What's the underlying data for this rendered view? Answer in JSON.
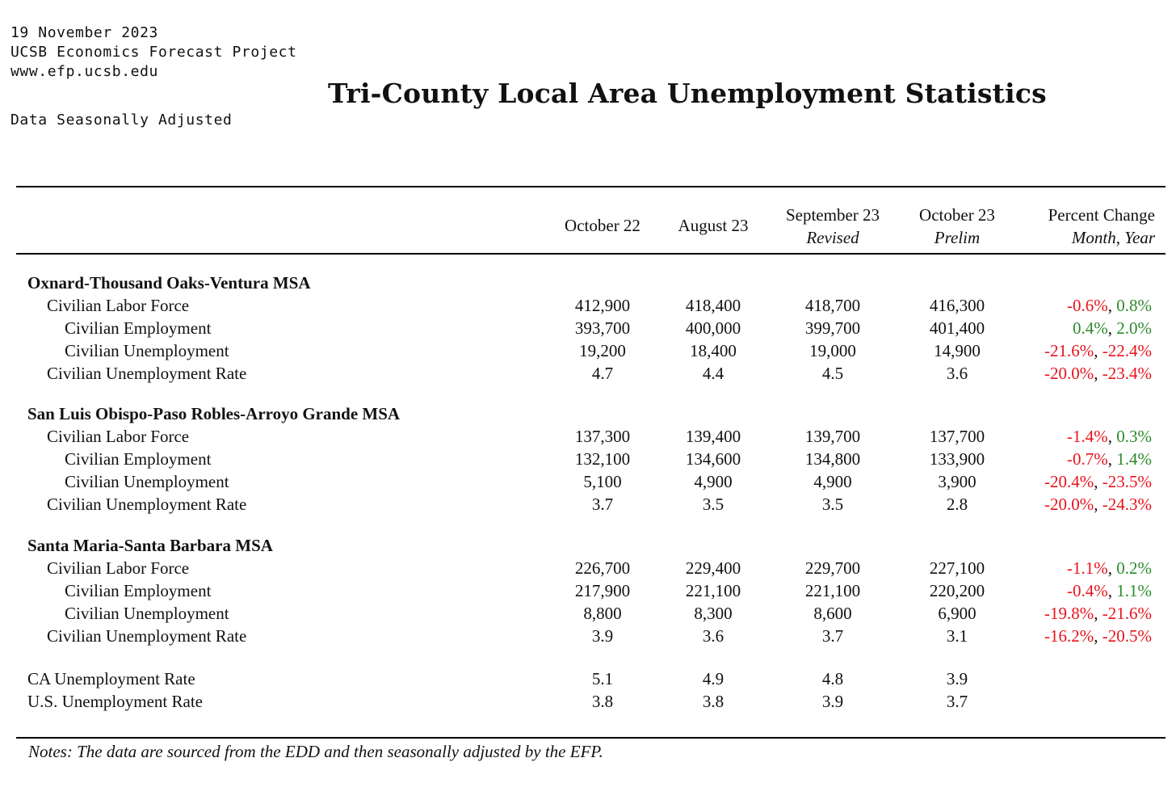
{
  "header": {
    "date": "19 November 2023",
    "org": "UCSB Economics Forecast Project",
    "url": "www.efp.ucsb.edu",
    "adjustment": "Data Seasonally Adjusted",
    "title": "Tri-County Local Area Unemployment Statistics"
  },
  "columns": [
    {
      "label": "October 22",
      "sub": ""
    },
    {
      "label": "August 23",
      "sub": ""
    },
    {
      "label": "September 23",
      "sub": "Revised"
    },
    {
      "label": "October 23",
      "sub": "Prelim"
    },
    {
      "label": "Percent Change",
      "sub": "Month, Year"
    }
  ],
  "groups": [
    {
      "name": "Oxnard-Thousand Oaks-Ventura MSA",
      "rows": [
        {
          "label": "Civilian Labor Force",
          "indent": 1,
          "values": [
            "412,900",
            "418,400",
            "418,700",
            "416,300"
          ],
          "month": "-0.6%",
          "year": "0.8%"
        },
        {
          "label": "Civilian Employment",
          "indent": 2,
          "values": [
            "393,700",
            "400,000",
            "399,700",
            "401,400"
          ],
          "month": "0.4%",
          "year": "2.0%"
        },
        {
          "label": "Civilian Unemployment",
          "indent": 2,
          "values": [
            "19,200",
            "18,400",
            "19,000",
            "14,900"
          ],
          "month": "-21.6%",
          "year": "-22.4%"
        },
        {
          "label": "Civilian Unemployment Rate",
          "indent": 1,
          "values": [
            "4.7",
            "4.4",
            "4.5",
            "3.6"
          ],
          "month": "-20.0%",
          "year": "-23.4%"
        }
      ]
    },
    {
      "name": "San Luis Obispo-Paso Robles-Arroyo Grande MSA",
      "rows": [
        {
          "label": "Civilian Labor Force",
          "indent": 1,
          "values": [
            "137,300",
            "139,400",
            "139,700",
            "137,700"
          ],
          "month": "-1.4%",
          "year": "0.3%"
        },
        {
          "label": "Civilian Employment",
          "indent": 2,
          "values": [
            "132,100",
            "134,600",
            "134,800",
            "133,900"
          ],
          "month": "-0.7%",
          "year": "1.4%"
        },
        {
          "label": "Civilian Unemployment",
          "indent": 2,
          "values": [
            "5,100",
            "4,900",
            "4,900",
            "3,900"
          ],
          "month": "-20.4%",
          "year": "-23.5%"
        },
        {
          "label": "Civilian Unemployment Rate",
          "indent": 1,
          "values": [
            "3.7",
            "3.5",
            "3.5",
            "2.8"
          ],
          "month": "-20.0%",
          "year": "-24.3%"
        }
      ]
    },
    {
      "name": "Santa Maria-Santa Barbara MSA",
      "rows": [
        {
          "label": "Civilian Labor Force",
          "indent": 1,
          "values": [
            "226,700",
            "229,400",
            "229,700",
            "227,100"
          ],
          "month": "-1.1%",
          "year": "0.2%"
        },
        {
          "label": "Civilian Employment",
          "indent": 2,
          "values": [
            "217,900",
            "221,100",
            "221,100",
            "220,200"
          ],
          "month": "-0.4%",
          "year": "1.1%"
        },
        {
          "label": "Civilian Unemployment",
          "indent": 2,
          "values": [
            "8,800",
            "8,300",
            "8,600",
            "6,900"
          ],
          "month": "-19.8%",
          "year": "-21.6%"
        },
        {
          "label": "Civilian Unemployment Rate",
          "indent": 1,
          "values": [
            "3.9",
            "3.6",
            "3.7",
            "3.1"
          ],
          "month": "-16.2%",
          "year": "-20.5%"
        }
      ]
    }
  ],
  "totals": [
    {
      "label": "CA Unemployment Rate",
      "values": [
        "5.1",
        "4.9",
        "4.8",
        "3.9"
      ]
    },
    {
      "label": "U.S. Unemployment Rate",
      "values": [
        "3.8",
        "3.8",
        "3.9",
        "3.7"
      ]
    }
  ],
  "note": "Notes: The data are sourced from the EDD and then seasonally adjusted by the EFP.",
  "colors": {
    "negative": "#e8121c",
    "positive": "#2c8a2c"
  }
}
